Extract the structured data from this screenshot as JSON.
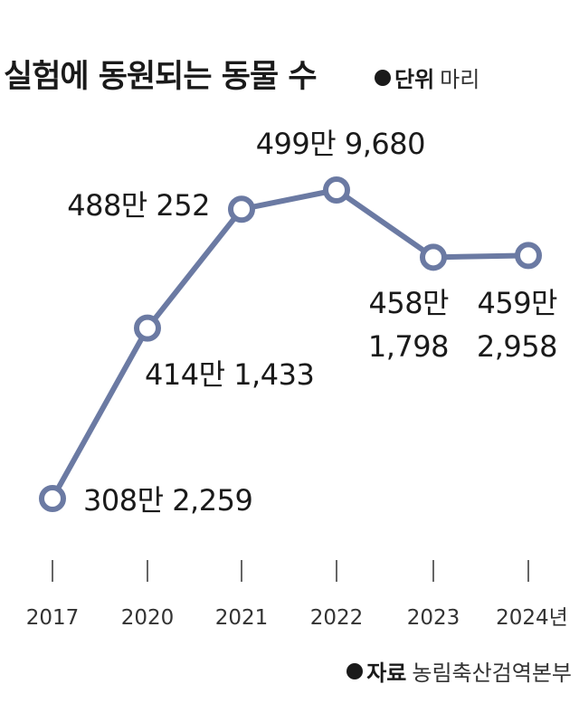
{
  "title": "실험에 동원되는 동물 수",
  "unit": {
    "key": "단위",
    "value": "마리"
  },
  "source": {
    "key": "자료",
    "value": "농림축산검역본부"
  },
  "chart_data": {
    "type": "line",
    "categories": [
      "2017",
      "2020",
      "2021",
      "2022",
      "2023",
      "2024년"
    ],
    "values": [
      3082259,
      4141433,
      4880252,
      4999680,
      4581798,
      4592958
    ],
    "data_labels": [
      [
        "308만 2,259"
      ],
      [
        "414만 1,433"
      ],
      [
        "488만 252"
      ],
      [
        "499만 9,680"
      ],
      [
        "458만",
        "1,798"
      ],
      [
        "459만",
        "2,958"
      ]
    ],
    "ylim": [
      2900000,
      5100000
    ],
    "grid": false,
    "colors": {
      "line": "#6b7aa3",
      "marker_fill": "#ffffff",
      "text": "#1a1a1a"
    }
  }
}
